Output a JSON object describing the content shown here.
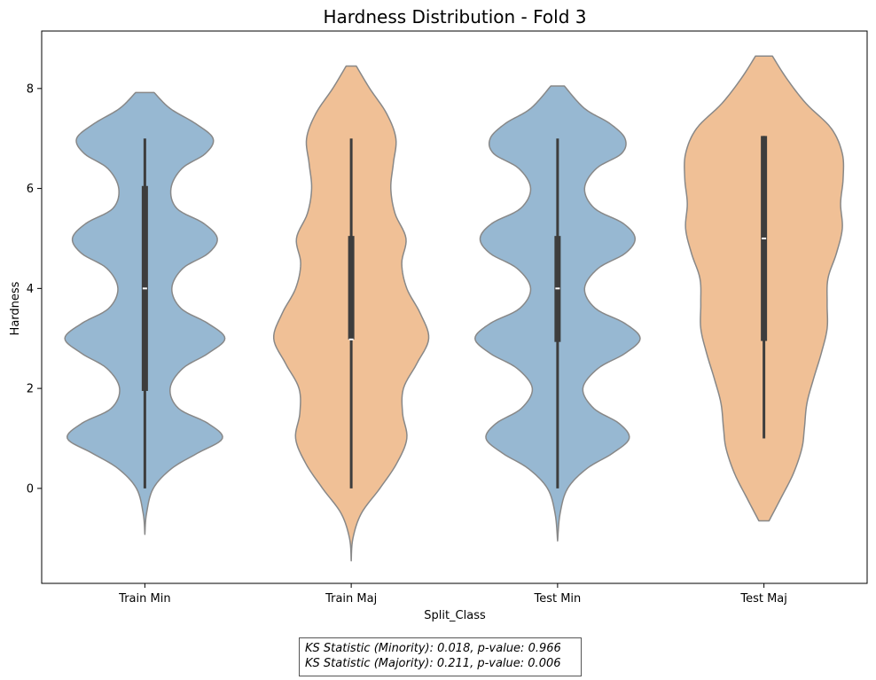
{
  "chart_data": {
    "type": "violin",
    "title": "Hardness Distribution - Fold 3",
    "xlabel": "Split_Class",
    "ylabel": "Hardness",
    "ylim": [
      -1.9,
      9.15
    ],
    "yticks": [
      0,
      2,
      4,
      6,
      8
    ],
    "categories": [
      "Train Min",
      "Train Maj",
      "Test Min",
      "Test Maj"
    ],
    "colors": [
      "#97b8d2",
      "#f0c096"
    ],
    "edge_color": "#888888",
    "violins": [
      {
        "category": "Train Min",
        "color": "#97b8d2",
        "min": 0,
        "q1": 1.95,
        "median": 4,
        "q3": 6.05,
        "max": 7,
        "kde_min": -0.92,
        "kde_max": 7.92,
        "profile": [
          [
            -0.92,
            0
          ],
          [
            -0.5,
            0.02
          ],
          [
            0,
            0.1
          ],
          [
            0.4,
            0.32
          ],
          [
            0.7,
            0.62
          ],
          [
            1,
            0.92
          ],
          [
            1.3,
            0.75
          ],
          [
            1.6,
            0.4
          ],
          [
            2,
            0.3
          ],
          [
            2.4,
            0.45
          ],
          [
            2.7,
            0.75
          ],
          [
            3,
            0.95
          ],
          [
            3.3,
            0.75
          ],
          [
            3.6,
            0.43
          ],
          [
            4,
            0.32
          ],
          [
            4.4,
            0.45
          ],
          [
            4.7,
            0.75
          ],
          [
            5,
            0.86
          ],
          [
            5.3,
            0.7
          ],
          [
            5.6,
            0.38
          ],
          [
            6,
            0.31
          ],
          [
            6.4,
            0.44
          ],
          [
            6.7,
            0.72
          ],
          [
            7,
            0.81
          ],
          [
            7.3,
            0.6
          ],
          [
            7.6,
            0.3
          ],
          [
            7.92,
            0.11
          ]
        ]
      },
      {
        "category": "Train Maj",
        "color": "#f0c096",
        "min": 0,
        "q1": 2.98,
        "median": 2.98,
        "q3": 5.05,
        "max": 7,
        "kde_min": -1.45,
        "kde_max": 8.45,
        "profile": [
          [
            -1.45,
            0
          ],
          [
            -1,
            0.02
          ],
          [
            -0.5,
            0.12
          ],
          [
            0,
            0.34
          ],
          [
            0.5,
            0.54
          ],
          [
            1,
            0.66
          ],
          [
            1.5,
            0.61
          ],
          [
            2,
            0.62
          ],
          [
            2.5,
            0.78
          ],
          [
            3,
            0.92
          ],
          [
            3.5,
            0.82
          ],
          [
            4,
            0.66
          ],
          [
            4.5,
            0.6
          ],
          [
            5,
            0.65
          ],
          [
            5.5,
            0.52
          ],
          [
            6,
            0.47
          ],
          [
            6.5,
            0.5
          ],
          [
            7,
            0.53
          ],
          [
            7.5,
            0.42
          ],
          [
            8,
            0.22
          ],
          [
            8.45,
            0.06
          ]
        ]
      },
      {
        "category": "Test Min",
        "color": "#97b8d2",
        "min": 0,
        "q1": 2.93,
        "median": 4,
        "q3": 5.05,
        "max": 7,
        "kde_min": -1.05,
        "kde_max": 8.05,
        "profile": [
          [
            -1.05,
            0
          ],
          [
            -0.5,
            0.03
          ],
          [
            0,
            0.12
          ],
          [
            0.4,
            0.35
          ],
          [
            0.7,
            0.65
          ],
          [
            1,
            0.85
          ],
          [
            1.3,
            0.73
          ],
          [
            1.6,
            0.43
          ],
          [
            2,
            0.3
          ],
          [
            2.4,
            0.48
          ],
          [
            2.7,
            0.8
          ],
          [
            3,
            0.98
          ],
          [
            3.3,
            0.8
          ],
          [
            3.6,
            0.45
          ],
          [
            4,
            0.32
          ],
          [
            4.4,
            0.48
          ],
          [
            4.7,
            0.8
          ],
          [
            5,
            0.92
          ],
          [
            5.3,
            0.78
          ],
          [
            5.6,
            0.44
          ],
          [
            6,
            0.32
          ],
          [
            6.4,
            0.46
          ],
          [
            6.7,
            0.76
          ],
          [
            7,
            0.8
          ],
          [
            7.3,
            0.62
          ],
          [
            7.6,
            0.32
          ],
          [
            8.05,
            0.08
          ]
        ]
      },
      {
        "category": "Test Maj",
        "color": "#f0c096",
        "min": 1,
        "q1": 2.95,
        "median": 5,
        "q3": 7.05,
        "max": 7.05,
        "kde_min": -0.65,
        "kde_max": 8.65,
        "profile": [
          [
            -0.65,
            0.06
          ],
          [
            -0.2,
            0.2
          ],
          [
            0.3,
            0.35
          ],
          [
            0.8,
            0.45
          ],
          [
            1.2,
            0.48
          ],
          [
            1.7,
            0.51
          ],
          [
            2.2,
            0.59
          ],
          [
            2.7,
            0.68
          ],
          [
            3.2,
            0.75
          ],
          [
            3.7,
            0.75
          ],
          [
            4.2,
            0.76
          ],
          [
            4.7,
            0.86
          ],
          [
            5.2,
            0.93
          ],
          [
            5.7,
            0.91
          ],
          [
            6.2,
            0.94
          ],
          [
            6.7,
            0.93
          ],
          [
            7.2,
            0.8
          ],
          [
            7.7,
            0.5
          ],
          [
            8.2,
            0.27
          ],
          [
            8.65,
            0.1
          ]
        ]
      }
    ]
  },
  "annotation": {
    "line1": "KS Statistic (Minority): 0.018, p-value: 0.966",
    "line2": "KS Statistic (Majority): 0.211, p-value: 0.006"
  }
}
